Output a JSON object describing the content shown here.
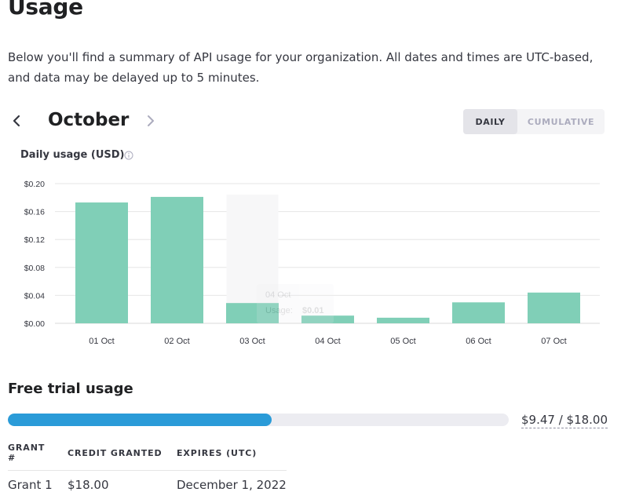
{
  "page": {
    "title": "Usage",
    "summary": "Below you'll find a summary of API usage for your organization. All dates and times are UTC-based, and data may be delayed up to 5 minutes."
  },
  "month_nav": {
    "month": "October",
    "prev_icon": "chevron-left-icon",
    "next_icon": "chevron-right-icon"
  },
  "view_toggle": {
    "daily_label": "DAILY",
    "cumulative_label": "CUMULATIVE",
    "selected": "DAILY"
  },
  "chart_heading": {
    "title": "Daily usage (USD)",
    "info_icon": "info-icon"
  },
  "chart_data": {
    "type": "bar",
    "title": "Daily usage (USD)",
    "categories": [
      "01 Oct",
      "02 Oct",
      "03 Oct",
      "04 Oct",
      "05 Oct",
      "06 Oct",
      "07 Oct"
    ],
    "values": [
      0.173,
      0.181,
      0.029,
      0.011,
      0.008,
      0.03,
      0.044
    ],
    "y_ticks": [
      0,
      0.04,
      0.08,
      0.12,
      0.16,
      0.2
    ],
    "y_tick_labels": [
      "$0.00",
      "$0.04",
      "$0.08",
      "$0.12",
      "$0.16",
      "$0.20"
    ],
    "ylim": [
      0,
      0.2
    ],
    "xlabel": "",
    "ylabel": "",
    "grid": true,
    "bar_color": "#80cfb7",
    "tooltip": {
      "category": "04 Oct",
      "label": "Usage:",
      "value": "$0.01"
    }
  },
  "free_trial": {
    "title": "Free trial usage",
    "used": 9.47,
    "total": 18.0,
    "progress_text": "$9.47 / $18.00",
    "bar_color": "#2a9bd8"
  },
  "grants_table": {
    "headers": [
      "GRANT #",
      "CREDIT GRANTED",
      "EXPIRES (UTC)"
    ],
    "rows": [
      {
        "grant": "Grant 1",
        "credit": "$18.00",
        "expires": "December 1, 2022"
      }
    ]
  }
}
